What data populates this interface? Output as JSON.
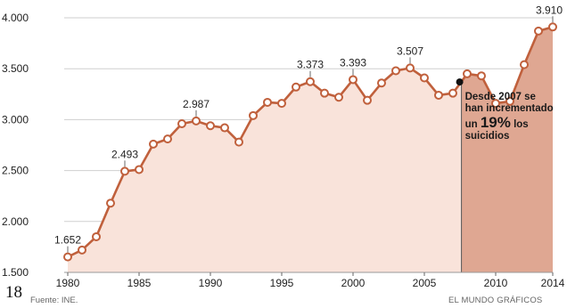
{
  "chart_data": {
    "type": "area",
    "title": "",
    "xlabel": "",
    "ylabel": "",
    "x": [
      1980,
      1981,
      1982,
      1983,
      1984,
      1985,
      1986,
      1987,
      1988,
      1989,
      1990,
      1991,
      1992,
      1993,
      1994,
      1995,
      1996,
      1997,
      1998,
      1999,
      2000,
      2001,
      2002,
      2003,
      2004,
      2005,
      2006,
      2007,
      2008,
      2009,
      2010,
      2011,
      2012,
      2013,
      2014
    ],
    "values": [
      1652,
      1720,
      1850,
      2180,
      2493,
      2510,
      2760,
      2810,
      2960,
      2987,
      2940,
      2920,
      2780,
      3040,
      3170,
      3160,
      3320,
      3373,
      3260,
      3220,
      3393,
      3190,
      3360,
      3480,
      3507,
      3410,
      3240,
      3260,
      3450,
      3430,
      3160,
      3180,
      3540,
      3870,
      3910
    ],
    "ylim": [
      1500,
      4000
    ],
    "xlim": [
      1980,
      2014
    ],
    "yticks": [
      "1.500",
      "2.000",
      "2.500",
      "3.000",
      "3.500",
      "4.000"
    ],
    "ytick_values": [
      1500,
      2000,
      2500,
      3000,
      3500,
      4000
    ],
    "xticks": [
      "1980",
      "1985",
      "1990",
      "1995",
      "2000",
      "2005",
      "2010",
      "2014"
    ],
    "xtick_values": [
      1980,
      1985,
      1990,
      1995,
      2000,
      2005,
      2010,
      2014
    ],
    "grid": true,
    "highlight_from": 2007.6,
    "data_labels": [
      {
        "x": 1980,
        "text": "1.652"
      },
      {
        "x": 1984,
        "text": "2.493"
      },
      {
        "x": 1989,
        "text": "2.987"
      },
      {
        "x": 1997,
        "text": "3.373"
      },
      {
        "x": 2000,
        "text": "3.393"
      },
      {
        "x": 2004,
        "text": "3.507"
      },
      {
        "x": 2014,
        "text": "3.910"
      }
    ],
    "annotation": {
      "x": 2007.6,
      "y": 3370,
      "line1": "Desde 2007 se",
      "line2": "han incrementado",
      "line3_prefix": "un ",
      "line3_big": "19%",
      "line3_suffix": " los",
      "line4": "suicidios"
    },
    "colors": {
      "line": "#c0603c",
      "fill": "#f9e3da",
      "fill_highlight": "#dfa792",
      "grid": "#cfcfcf",
      "marker_fill": "#ffffff",
      "text": "#222222"
    }
  },
  "footer": {
    "page_number": "18",
    "source": "Fuente: INE.",
    "credit": "EL MUNDO GRÁFICOS"
  }
}
